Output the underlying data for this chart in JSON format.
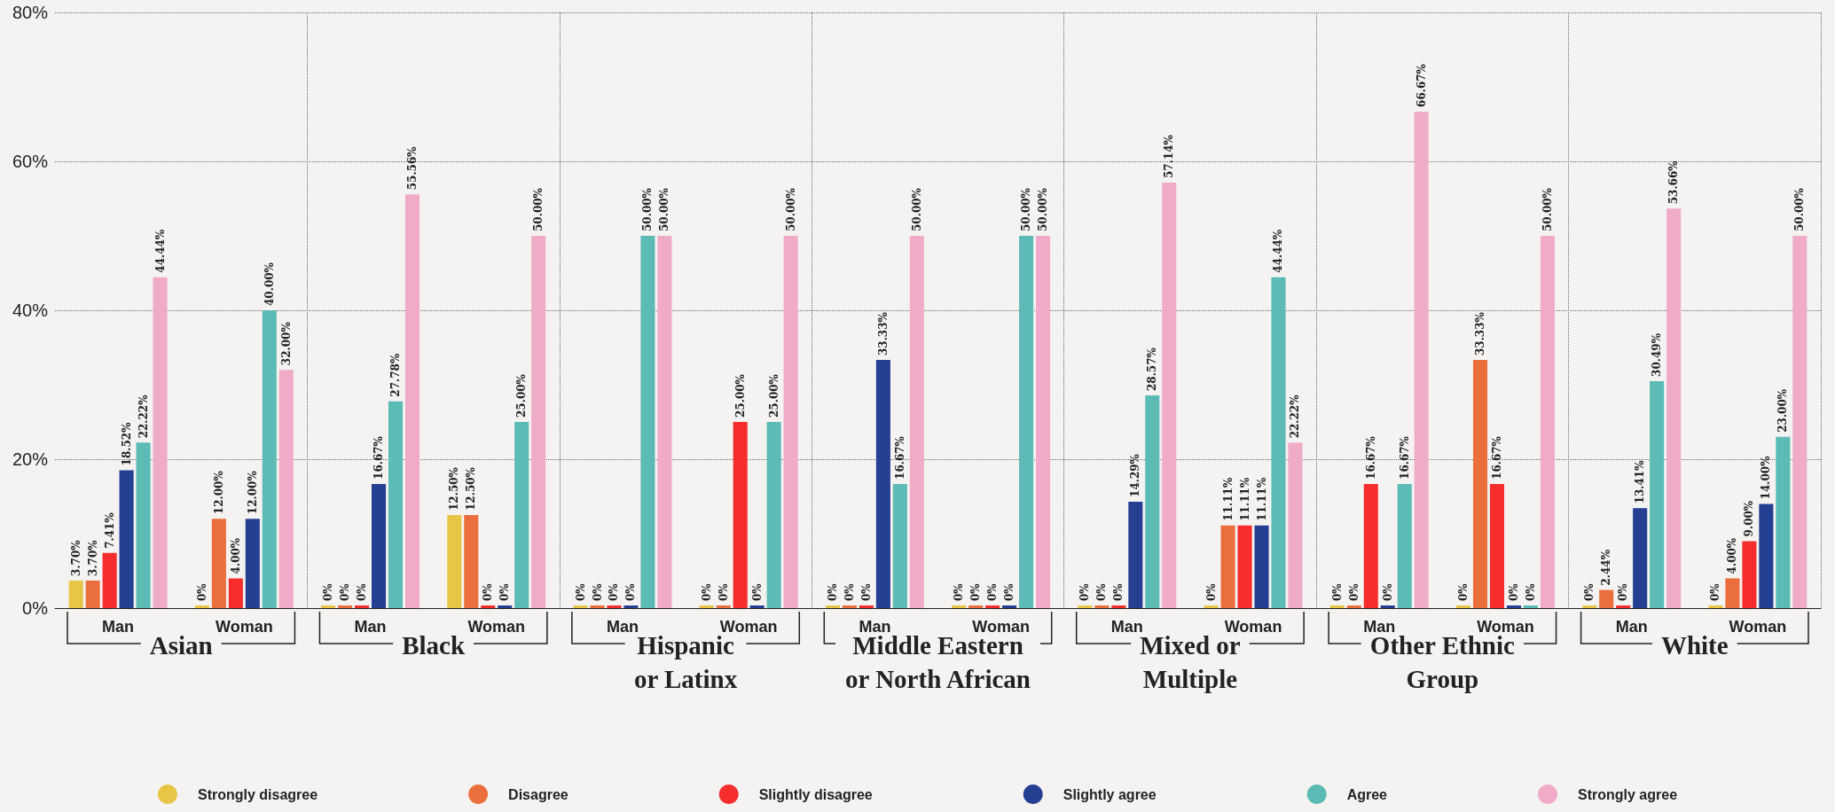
{
  "chart_data": {
    "type": "bar",
    "categories": [
      "Man",
      "Woman",
      "Man",
      "Woman",
      "Man",
      "Woman",
      "Man",
      "Woman",
      "Man",
      "Woman",
      "Man",
      "Woman",
      "Man",
      "Woman"
    ],
    "annotations": [
      "Asian",
      "Black",
      "Hispanic\nor Latinx",
      "Middle Eastern\nor North African",
      "Mixed or\nMultiple",
      "Other Ethnic\nGroup",
      "White"
    ],
    "series": [
      {
        "name": "Strongly disagree",
        "color": "#e8c547",
        "values": [
          3.7,
          0,
          0,
          12.5,
          0,
          0,
          0,
          0,
          0,
          0,
          0,
          0,
          0,
          0
        ],
        "value_labels": [
          "3.70%",
          "0%",
          "0%",
          "12.50%",
          "0%",
          "0%",
          "0%",
          "0%",
          "0%",
          "0%",
          "0%",
          "0%",
          "0%",
          "0%"
        ]
      },
      {
        "name": "Disagree",
        "color": "#eb6f3c",
        "values": [
          3.7,
          12,
          0,
          12.5,
          0,
          0,
          0,
          0,
          0,
          11.11,
          0,
          33.33,
          2.44,
          4
        ],
        "value_labels": [
          "3.70%",
          "12.00%",
          "0%",
          "12.50%",
          "0%",
          "0%",
          "0%",
          "0%",
          "0%",
          "11.11%",
          "0%",
          "33.33%",
          "2.44%",
          "4.00%"
        ]
      },
      {
        "name": "Slightly disagree",
        "color": "#f52d2d",
        "values": [
          7.41,
          4,
          0,
          0,
          0,
          25,
          0,
          0,
          0,
          11.11,
          16.67,
          16.67,
          0,
          9
        ],
        "value_labels": [
          "7.41%",
          "4.00%",
          "0%",
          "0%",
          "0%",
          "25.00%",
          "0%",
          "0%",
          "0%",
          "11.11%",
          "16.67%",
          "16.67%",
          "0%",
          "9.00%"
        ]
      },
      {
        "name": "Slightly agree",
        "color": "#253f93",
        "values": [
          18.52,
          12,
          16.67,
          0,
          0,
          0,
          33.33,
          0,
          14.29,
          11.11,
          0,
          0,
          13.41,
          14
        ],
        "value_labels": [
          "18.52%",
          "12.00%",
          "16.67%",
          "0%",
          "0%",
          "0%",
          "33.33%",
          "0%",
          "14.29%",
          "11.11%",
          "0%",
          "0%",
          "13.41%",
          "14.00%"
        ]
      },
      {
        "name": "Agree",
        "color": "#5cbbb5",
        "values": [
          22.22,
          40,
          27.78,
          25,
          50,
          25,
          16.67,
          50,
          28.57,
          44.44,
          16.67,
          0,
          30.49,
          23
        ],
        "value_labels": [
          "22.22%",
          "40.00%",
          "27.78%",
          "25.00%",
          "50.00%",
          "25.00%",
          "16.67%",
          "50.00%",
          "28.57%",
          "44.44%",
          "16.67%",
          "0%",
          "30.49%",
          "23.00%"
        ]
      },
      {
        "name": "Strongly agree",
        "color": "#efabc8",
        "values": [
          44.44,
          32,
          55.56,
          50,
          50,
          50,
          50,
          50,
          57.14,
          22.22,
          66.67,
          50,
          53.66,
          50
        ],
        "value_labels": [
          "44.44%",
          "32.00%",
          "55.56%",
          "50.00%",
          "50.00%",
          "50.00%",
          "50.00%",
          "50.00%",
          "57.14%",
          "22.22%",
          "66.67%",
          "50.00%",
          "53.66%",
          "50.00%"
        ]
      }
    ],
    "ylim": [
      0,
      80
    ],
    "yticks": [
      {
        "value": 0,
        "label": "0%"
      },
      {
        "value": 20,
        "label": "20%"
      },
      {
        "value": 40,
        "label": "40%"
      },
      {
        "value": 60,
        "label": "60%"
      },
      {
        "value": 80,
        "label": "80%"
      }
    ],
    "grid": true,
    "legend": "bottom"
  }
}
